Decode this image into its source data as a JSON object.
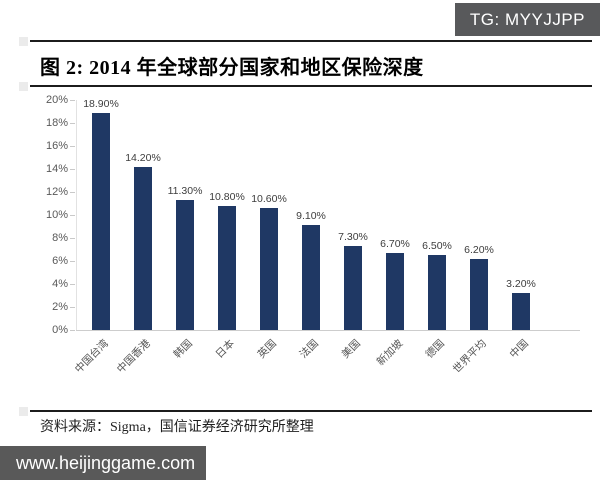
{
  "badge": {
    "label": "TG: MYYJJPP"
  },
  "chart_data": {
    "type": "bar",
    "title": "图 2: 2014 年全球部分国家和地区保险深度",
    "categories": [
      "中国台湾",
      "中国香港",
      "韩国",
      "日本",
      "英国",
      "法国",
      "美国",
      "新加坡",
      "德国",
      "世界平均",
      "中国"
    ],
    "values": [
      18.9,
      14.2,
      11.3,
      10.8,
      10.6,
      9.1,
      7.3,
      6.7,
      6.5,
      6.2,
      3.2
    ],
    "data_labels": [
      "18.90%",
      "14.20%",
      "11.30%",
      "10.80%",
      "10.60%",
      "9.10%",
      "7.30%",
      "6.70%",
      "6.50%",
      "6.20%",
      "3.20%"
    ],
    "xlabel": "",
    "ylabel": "",
    "ylim": [
      0,
      20
    ],
    "ytick_step": 2,
    "yticks": [
      "20%",
      "18%",
      "16%",
      "14%",
      "12%",
      "10%",
      "8%",
      "6%",
      "4%",
      "2%",
      "0%"
    ],
    "grid": false,
    "legend": "none",
    "bar_color": "#1F3864"
  },
  "footer": {
    "source_label": "资料来源：Sigma，国信证券经济研究所整理"
  },
  "watermark": {
    "url": "www.heijinggame.com"
  },
  "colors": {
    "bar": "#1F3864",
    "badge_bg": "#58595B",
    "badge_text": "#FFFFFF",
    "watermark_bg": "#595959",
    "watermark_text": "#FFFFFF",
    "rule": "#1C1C1C"
  }
}
